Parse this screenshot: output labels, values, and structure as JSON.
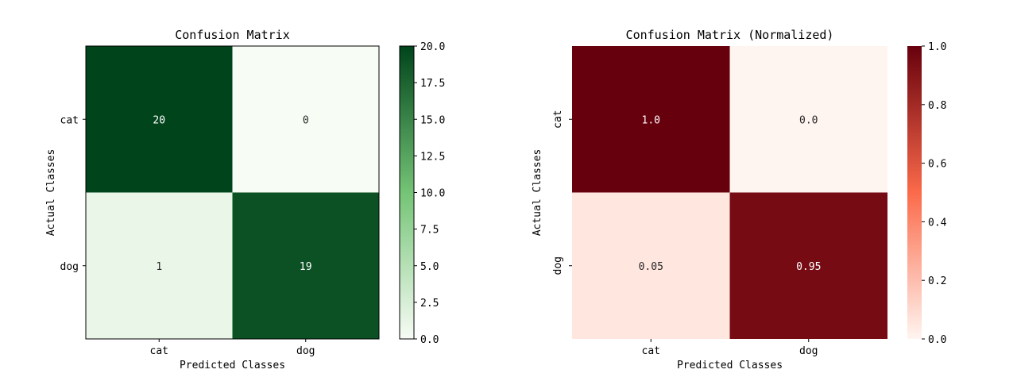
{
  "chart_data": [
    {
      "type": "heatmap",
      "title": "Confusion Matrix",
      "xlabel": "Predicted Classes",
      "ylabel": "Actual Classes",
      "x_categories": [
        "cat",
        "dog"
      ],
      "y_categories": [
        "cat",
        "dog"
      ],
      "values": [
        [
          20,
          0
        ],
        [
          1,
          19
        ]
      ],
      "cell_labels": [
        [
          "20",
          "0"
        ],
        [
          "1",
          "19"
        ]
      ],
      "colormap": "Greens",
      "color_low": "#f7fcf5",
      "color_mid": "#74c476",
      "color_high": "#00441b",
      "vmin": 0,
      "vmax": 20,
      "colorbar_ticks": [
        "0.0",
        "2.5",
        "5.0",
        "7.5",
        "10.0",
        "12.5",
        "15.0",
        "17.5",
        "20.0"
      ],
      "colorbar_tick_values": [
        0,
        2.5,
        5,
        7.5,
        10,
        12.5,
        15,
        17.5,
        20
      ],
      "y_tick_rotation": "horizontal",
      "frame": true
    },
    {
      "type": "heatmap",
      "title": "Confusion Matrix (Normalized)",
      "xlabel": "Predicted Classes",
      "ylabel": "Actual Classes",
      "x_categories": [
        "cat",
        "dog"
      ],
      "y_categories": [
        "cat",
        "dog"
      ],
      "values": [
        [
          1.0,
          0.0
        ],
        [
          0.05,
          0.95
        ]
      ],
      "cell_labels": [
        [
          "1.0",
          "0.0"
        ],
        [
          "0.05",
          "0.95"
        ]
      ],
      "colormap": "Reds",
      "color_low": "#fff5f0",
      "color_mid": "#fb6a4a",
      "color_high": "#67000d",
      "vmin": 0,
      "vmax": 1,
      "colorbar_ticks": [
        "0.0",
        "0.2",
        "0.4",
        "0.6",
        "0.8",
        "1.0"
      ],
      "colorbar_tick_values": [
        0,
        0.2,
        0.4,
        0.6,
        0.8,
        1.0
      ],
      "y_tick_rotation": "vertical",
      "frame": false
    }
  ]
}
